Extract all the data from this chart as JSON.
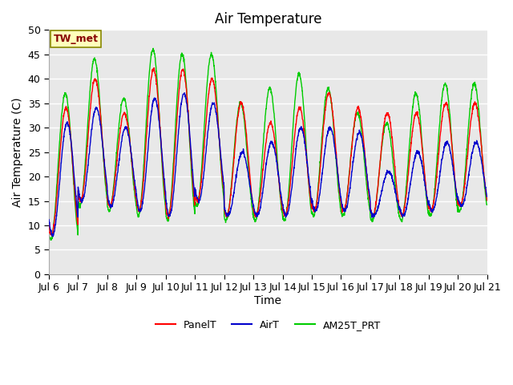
{
  "title": "Air Temperature",
  "ylabel": "Air Temperature (C)",
  "xlabel": "Time",
  "annotation": "TW_met",
  "ylim": [
    0,
    50
  ],
  "yticks": [
    0,
    5,
    10,
    15,
    20,
    25,
    30,
    35,
    40,
    45,
    50
  ],
  "legend": [
    "PanelT",
    "AirT",
    "AM25T_PRT"
  ],
  "line_colors": [
    "#ff0000",
    "#0000cc",
    "#00cc00"
  ],
  "bg_color": "#e8e8e8",
  "title_fontsize": 12,
  "axis_fontsize": 10,
  "tick_fontsize": 9,
  "day_peaks_panel": [
    34,
    40,
    33,
    42,
    42,
    40,
    35,
    31,
    34,
    37,
    34,
    33,
    33,
    35,
    35
  ],
  "day_peaks_air": [
    31,
    34,
    30,
    36,
    37,
    35,
    25,
    27,
    30,
    30,
    29,
    21,
    25,
    27,
    27
  ],
  "day_peaks_am25": [
    37,
    44,
    36,
    46,
    45,
    45,
    35,
    38,
    41,
    38,
    33,
    31,
    37,
    39,
    39
  ],
  "day_mins": [
    8,
    15,
    14,
    13,
    12,
    15,
    12,
    12,
    12,
    13,
    13,
    12,
    12,
    13,
    14
  ]
}
